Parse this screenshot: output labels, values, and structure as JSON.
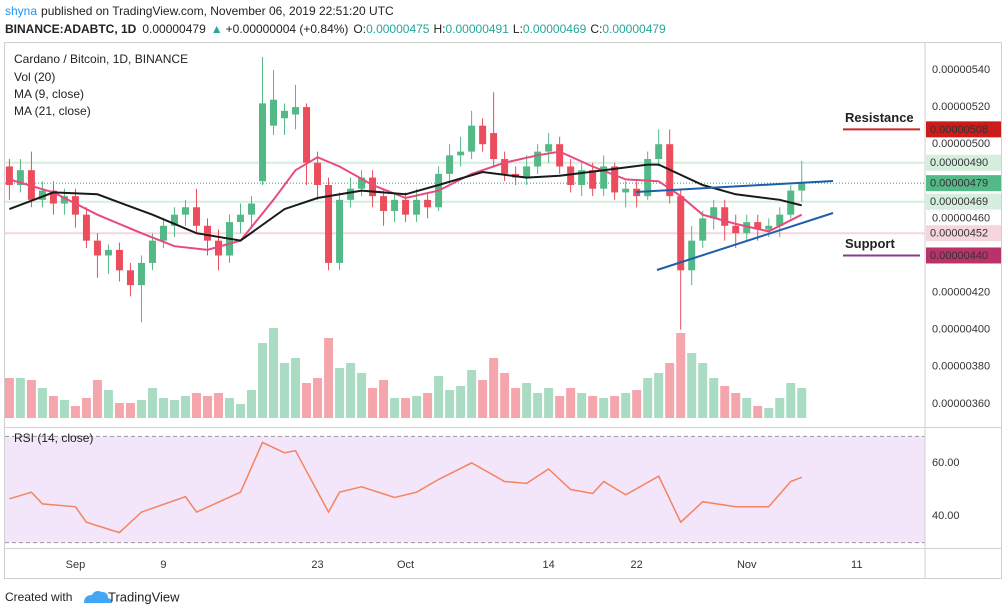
{
  "header": {
    "author": "shyna",
    "published": "published on TradingView.com, November 06, 2019 22:51:20 UTC",
    "symbol": "BINANCE:ADABTC, 1D",
    "price": "0.00000479",
    "arrow": "▲",
    "change": "+0.00000004 (+0.84%)",
    "o_label": "O:",
    "o": "0.00000475",
    "h_label": "H:",
    "h": "0.00000491",
    "l_label": "L:",
    "l": "0.00000469",
    "c_label": "C:",
    "c": "0.00000479"
  },
  "footer": {
    "text": "Created with",
    "brand": "TradingView"
  },
  "chart_data": {
    "type": "candlestick",
    "title": "Cardano / Bitcoin, 1D, BINANCE",
    "up_color": "#53b987",
    "down_color": "#eb4d5c",
    "x": [
      0,
      1,
      2,
      3,
      4,
      5,
      6,
      7,
      8,
      9,
      10,
      11,
      12,
      13,
      14,
      15,
      16,
      17,
      18,
      19,
      20,
      21,
      22,
      23,
      24,
      25,
      26,
      27,
      28,
      29,
      30,
      31,
      32,
      33,
      34,
      35,
      36,
      37,
      38,
      39,
      40,
      41,
      42,
      43,
      44,
      45,
      46,
      47,
      48,
      49,
      50,
      51,
      52,
      53,
      54,
      55,
      56,
      57,
      58,
      59,
      60,
      61,
      62,
      63,
      64,
      65,
      66,
      67,
      68,
      69,
      70,
      71,
      72
    ],
    "open": [
      4.88e-06,
      4.78e-06,
      4.86e-06,
      4.7e-06,
      4.75e-06,
      4.68e-06,
      4.72e-06,
      4.62e-06,
      4.48e-06,
      4.4e-06,
      4.43e-06,
      4.32e-06,
      4.24e-06,
      4.36e-06,
      4.48e-06,
      4.56e-06,
      4.62e-06,
      4.66e-06,
      4.56e-06,
      4.48e-06,
      4.4e-06,
      4.58e-06,
      4.62e-06,
      4.8e-06,
      5.1e-06,
      5.14e-06,
      5.16e-06,
      5.2e-06,
      4.9e-06,
      4.78e-06,
      4.36e-06,
      4.7e-06,
      4.76e-06,
      4.82e-06,
      4.72e-06,
      4.64e-06,
      4.7e-06,
      4.62e-06,
      4.7e-06,
      4.66e-06,
      4.84e-06,
      4.94e-06,
      4.96e-06,
      5.1e-06,
      5.06e-06,
      4.92e-06,
      4.84e-06,
      4.82e-06,
      4.88e-06,
      4.96e-06,
      5e-06,
      4.88e-06,
      4.78e-06,
      4.86e-06,
      4.76e-06,
      4.88e-06,
      4.74e-06,
      4.76e-06,
      4.72e-06,
      4.92e-06,
      5e-06,
      4.72e-06,
      4.32e-06,
      4.48e-06,
      4.6e-06,
      4.66e-06,
      4.56e-06,
      4.52e-06,
      4.58e-06,
      4.54e-06,
      4.56e-06,
      4.62e-06,
      4.75e-06
    ],
    "high": [
      4.92e-06,
      4.92e-06,
      4.96e-06,
      4.8e-06,
      4.8e-06,
      4.76e-06,
      4.76e-06,
      4.66e-06,
      4.52e-06,
      4.46e-06,
      4.47e-06,
      4.36e-06,
      4.4e-06,
      4.52e-06,
      4.6e-06,
      4.66e-06,
      4.7e-06,
      4.76e-06,
      4.6e-06,
      4.54e-06,
      4.62e-06,
      4.68e-06,
      4.72e-06,
      5.47e-06,
      5.4e-06,
      5.22e-06,
      5.32e-06,
      5.22e-06,
      4.96e-06,
      4.82e-06,
      4.74e-06,
      4.82e-06,
      4.86e-06,
      4.86e-06,
      4.76e-06,
      4.74e-06,
      4.74e-06,
      4.76e-06,
      4.74e-06,
      4.88e-06,
      5e-06,
      5.04e-06,
      5.18e-06,
      5.14e-06,
      5.28e-06,
      4.96e-06,
      4.88e-06,
      4.94e-06,
      5e-06,
      5.06e-06,
      5.04e-06,
      4.92e-06,
      4.9e-06,
      4.9e-06,
      4.94e-06,
      4.9e-06,
      4.8e-06,
      4.8e-06,
      4.96e-06,
      5.08e-06,
      5.08e-06,
      4.76e-06,
      4.56e-06,
      4.64e-06,
      4.7e-06,
      4.7e-06,
      4.62e-06,
      4.62e-06,
      4.62e-06,
      4.6e-06,
      4.66e-06,
      4.78e-06,
      4.91e-06
    ],
    "low": [
      4.7e-06,
      4.74e-06,
      4.66e-06,
      4.66e-06,
      4.62e-06,
      4.62e-06,
      4.55e-06,
      4.44e-06,
      4.28e-06,
      4.3e-06,
      4.26e-06,
      4.18e-06,
      4.04e-06,
      4.32e-06,
      4.44e-06,
      4.5e-06,
      4.56e-06,
      4.52e-06,
      4.4e-06,
      4.32e-06,
      4.36e-06,
      4.52e-06,
      4.56e-06,
      4.78e-06,
      5.05e-06,
      5.05e-06,
      5.08e-06,
      4.78e-06,
      4.7e-06,
      4.32e-06,
      4.32e-06,
      4.66e-06,
      4.72e-06,
      4.66e-06,
      4.56e-06,
      4.58e-06,
      4.58e-06,
      4.58e-06,
      4.6e-06,
      4.64e-06,
      4.8e-06,
      4.88e-06,
      4.92e-06,
      4.96e-06,
      4.88e-06,
      4.8e-06,
      4.78e-06,
      4.78e-06,
      4.84e-06,
      4.9e-06,
      4.84e-06,
      4.74e-06,
      4.72e-06,
      4.72e-06,
      4.72e-06,
      4.7e-06,
      4.66e-06,
      4.66e-06,
      4.7e-06,
      4.88e-06,
      4.68e-06,
      4e-06,
      4.24e-06,
      4.44e-06,
      4.54e-06,
      4.48e-06,
      4.44e-06,
      4.48e-06,
      4.48e-06,
      4.5e-06,
      4.5e-06,
      4.6e-06,
      4.69e-06
    ],
    "close": [
      4.78e-06,
      4.86e-06,
      4.7e-06,
      4.75e-06,
      4.68e-06,
      4.72e-06,
      4.62e-06,
      4.48e-06,
      4.4e-06,
      4.43e-06,
      4.32e-06,
      4.24e-06,
      4.36e-06,
      4.48e-06,
      4.56e-06,
      4.62e-06,
      4.66e-06,
      4.56e-06,
      4.48e-06,
      4.4e-06,
      4.58e-06,
      4.62e-06,
      4.68e-06,
      5.22e-06,
      5.24e-06,
      5.18e-06,
      5.2e-06,
      4.9e-06,
      4.78e-06,
      4.36e-06,
      4.7e-06,
      4.76e-06,
      4.82e-06,
      4.72e-06,
      4.64e-06,
      4.7e-06,
      4.62e-06,
      4.7e-06,
      4.66e-06,
      4.84e-06,
      4.94e-06,
      4.96e-06,
      5.1e-06,
      5e-06,
      4.92e-06,
      4.84e-06,
      4.82e-06,
      4.88e-06,
      4.96e-06,
      5e-06,
      4.88e-06,
      4.78e-06,
      4.86e-06,
      4.76e-06,
      4.88e-06,
      4.74e-06,
      4.76e-06,
      4.72e-06,
      4.92e-06,
      5e-06,
      4.72e-06,
      4.32e-06,
      4.48e-06,
      4.6e-06,
      4.66e-06,
      4.56e-06,
      4.52e-06,
      4.58e-06,
      4.54e-06,
      4.56e-06,
      4.62e-06,
      4.75e-06,
      4.79e-06
    ],
    "volume": {
      "name": "Vol (20)",
      "ylim": [
        0,
        100
      ],
      "values": [
        40,
        40,
        38,
        30,
        22,
        18,
        12,
        20,
        38,
        28,
        15,
        15,
        18,
        30,
        20,
        18,
        22,
        25,
        22,
        25,
        20,
        14,
        28,
        75,
        90,
        55,
        60,
        35,
        40,
        80,
        50,
        55,
        45,
        30,
        38,
        20,
        20,
        22,
        25,
        42,
        28,
        32,
        48,
        38,
        60,
        45,
        30,
        35,
        25,
        30,
        22,
        30,
        25,
        22,
        20,
        22,
        25,
        28,
        40,
        45,
        55,
        85,
        65,
        55,
        40,
        32,
        25,
        20,
        12,
        10,
        20,
        35,
        30
      ]
    },
    "ma": [
      {
        "name": "MA (9, close)",
        "color": "#e84a7f",
        "x": [
          0,
          4,
          8,
          12,
          15,
          18,
          21,
          24,
          26,
          28,
          30,
          33,
          36,
          39,
          42,
          45,
          48,
          50,
          53,
          56,
          59,
          61,
          63,
          66,
          69,
          72
        ],
        "values": [
          4.81e-06,
          4.74e-06,
          4.62e-06,
          4.52e-06,
          4.45e-06,
          4.43e-06,
          4.48e-06,
          4.7e-06,
          4.86e-06,
          4.93e-06,
          4.88e-06,
          4.78e-06,
          4.71e-06,
          4.75e-06,
          4.84e-06,
          4.9e-06,
          4.94e-06,
          4.96e-06,
          4.88e-06,
          4.81e-06,
          4.8e-06,
          4.72e-06,
          4.62e-06,
          4.57e-06,
          4.53e-06,
          4.62e-06
        ]
      },
      {
        "name": "MA (21, close)",
        "color": "#1a1a1a",
        "x": [
          0,
          4,
          8,
          13,
          17,
          21,
          25,
          28,
          32,
          36,
          39,
          43,
          47,
          50,
          54,
          58,
          59,
          63,
          66,
          70,
          72
        ],
        "values": [
          4.65e-06,
          4.74e-06,
          4.73e-06,
          4.62e-06,
          4.52e-06,
          4.48e-06,
          4.65e-06,
          4.71e-06,
          4.75e-06,
          4.73e-06,
          4.78e-06,
          4.85e-06,
          4.82e-06,
          4.83e-06,
          4.86e-06,
          4.89e-06,
          4.89e-06,
          4.78e-06,
          4.73e-06,
          4.7e-06,
          4.67e-06
        ]
      }
    ],
    "rsi": {
      "name": "RSI (14, close)",
      "color": "#f4845f",
      "band": [
        30,
        70
      ],
      "band_color": "#f3e6fa",
      "ylim": [
        28,
        72
      ],
      "yticks": [
        {
          "value": 60,
          "label": "60.00"
        },
        {
          "value": 40,
          "label": "40.00"
        }
      ],
      "x": [
        0,
        2,
        3,
        6,
        7,
        10,
        12,
        16,
        17,
        21,
        23,
        25,
        26,
        29,
        30,
        32,
        35,
        37,
        39,
        42,
        45,
        47,
        49,
        51,
        53,
        54,
        56,
        59,
        61,
        63,
        66,
        69,
        71,
        72
      ],
      "values": [
        46.5,
        49,
        44.6,
        43.5,
        37.7,
        33.8,
        41.5,
        47.3,
        41.5,
        49,
        67.7,
        63.8,
        64.6,
        41.5,
        49,
        51,
        47,
        49,
        53.8,
        60,
        53,
        52.3,
        57.7,
        50,
        48.5,
        53,
        48,
        55,
        37.7,
        45.4,
        43.5,
        43.5,
        53,
        54.6
      ]
    },
    "xlim": [
      -0.4,
      83.2
    ],
    "xticks": [
      {
        "value": 6,
        "label": "Sep"
      },
      {
        "value": 14,
        "label": "9"
      },
      {
        "value": 28,
        "label": "23"
      },
      {
        "value": 36,
        "label": "Oct"
      },
      {
        "value": 49,
        "label": "14"
      },
      {
        "value": 57,
        "label": "22"
      },
      {
        "value": 67,
        "label": "Nov"
      },
      {
        "value": 77,
        "label": "11"
      }
    ],
    "ylim": [
      3.486e-06,
      5.551e-06
    ],
    "yticks": [
      {
        "value": 5.4e-06,
        "label": "0.00000540"
      },
      {
        "value": 5.2e-06,
        "label": "0.00000520"
      },
      {
        "value": 5e-06,
        "label": "0.00000500"
      },
      {
        "value": 4.6e-06,
        "label": "0.00000460"
      },
      {
        "value": 4.2e-06,
        "label": "0.00000420"
      },
      {
        "value": 4e-06,
        "label": "0.00000400"
      },
      {
        "value": 3.8e-06,
        "label": "0.00000380"
      },
      {
        "value": 3.6e-06,
        "label": "0.00000360"
      }
    ],
    "levels": [
      {
        "value": 5.08e-06,
        "label": "0.00000508",
        "color": "#cc1b1b",
        "text_color": "#ffffff",
        "line": "short",
        "line_color": "#c62828",
        "note": "Resistance",
        "note_color": "#163c3c"
      },
      {
        "value": 4.9e-06,
        "label": "0.00000490",
        "color": "#d6eedd",
        "text_color": "#222222",
        "line": "full",
        "line_color": "#d6eedd"
      },
      {
        "value": 4.79e-06,
        "label": "0.00000479",
        "color": "#53b987",
        "text_color": "#ffffff",
        "line": "dotted",
        "line_color": "#3c8d8d"
      },
      {
        "value": 4.69e-06,
        "label": "0.00000469",
        "color": "#d6eedd",
        "text_color": "#222222",
        "line": "full",
        "line_color": "#d6eedd"
      },
      {
        "value": 4.52e-06,
        "label": "0.00000452",
        "color": "#f6d5dc",
        "text_color": "#222222",
        "line": "full",
        "line_color": "#f6d5dc"
      },
      {
        "value": 4.4e-06,
        "label": "0.00000440",
        "color": "#b8336a",
        "text_color": "#ffffff",
        "line": "short",
        "line_color": "#8e3b8e",
        "note": "Support",
        "note_color": "#b8336a"
      }
    ]
  }
}
